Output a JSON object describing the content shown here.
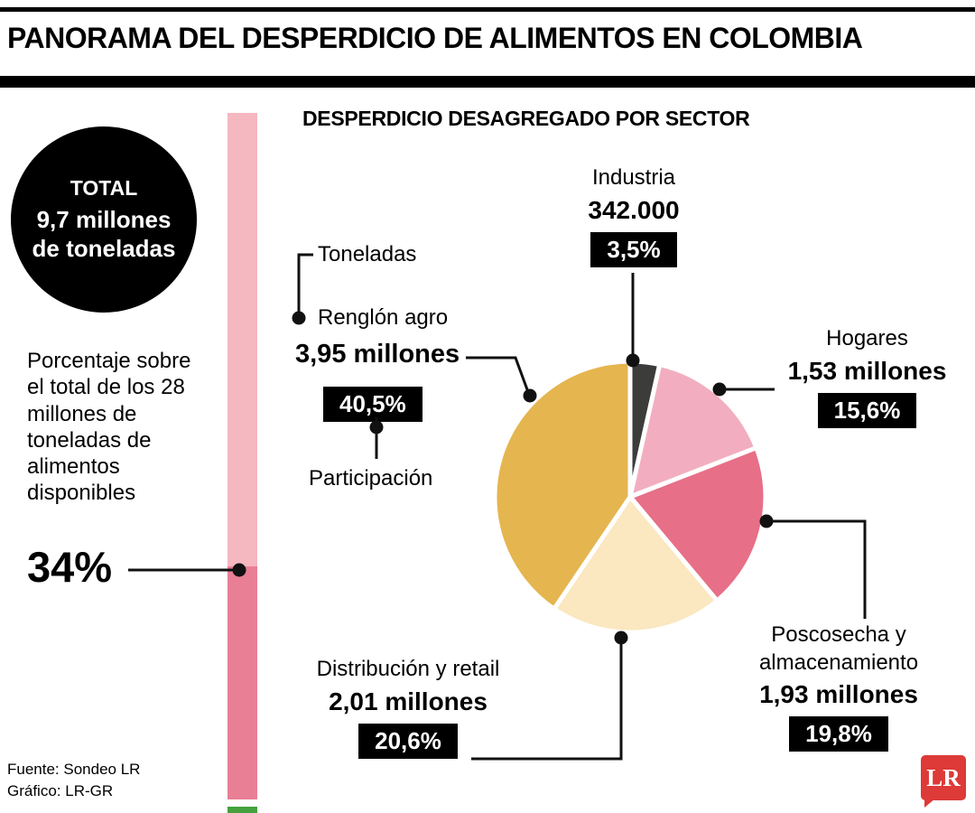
{
  "header": {
    "title": "PANORAMA DEL DESPERDICIO DE ALIMENTOS EN COLOMBIA"
  },
  "total_badge": {
    "label": "TOTAL",
    "line1": "9,7 millones",
    "line2": "de toneladas"
  },
  "left_panel": {
    "note": "Porcentaje sobre el total de los 28 millones de toneladas de alimentos disponibles",
    "percentage": "34%"
  },
  "chart_data": {
    "type": "pie",
    "title": "DESPERDICIO DESAGREGADO POR SECTOR",
    "legend_hints": {
      "tons": "Toneladas",
      "share": "Participación"
    },
    "slices": [
      {
        "label": "Industria",
        "tons": "342.000",
        "share": "3,5%",
        "value": 3.5,
        "color": "#3c3c3b"
      },
      {
        "label": "Hogares",
        "tons": "1,53 millones",
        "share": "15,6%",
        "value": 15.6,
        "color": "#f2aec0"
      },
      {
        "label": "Poscosecha y almacenamiento",
        "tons": "1,93 millones",
        "share": "19,8%",
        "value": 19.8,
        "color": "#e76f87"
      },
      {
        "label": "Distribución y retail",
        "tons": "2,01 millones",
        "share": "20,6%",
        "value": 20.6,
        "color": "#fbe7c0"
      },
      {
        "label": "Renglón agro",
        "tons": "3,95 millones",
        "share": "40,5%",
        "value": 40.5,
        "color": "#e5b54f"
      }
    ],
    "bar": {
      "top_color": "#f5b7c0",
      "bottom_color": "#e87f95",
      "bottom_pct": 34,
      "cutoff_color": "#44a13d"
    }
  },
  "footer": {
    "source": "Fuente: Sondeo LR",
    "credit": "Gráfico: LR-GR",
    "logo": "LR"
  }
}
